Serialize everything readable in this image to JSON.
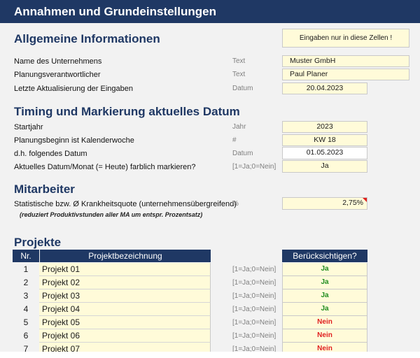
{
  "title": "Annahmen und Grundeinstellungen",
  "hint": "Eingaben nur in diese Zellen !",
  "colors": {
    "header_bg": "#1f3864",
    "input_bg": "#fffbd9",
    "yes": "#1e8c1e",
    "no": "#e02020"
  },
  "general": {
    "heading": "Allgemeine Informationen",
    "rows": [
      {
        "label": "Name des Unternehmens",
        "unit": "Text",
        "value": "Muster GmbH"
      },
      {
        "label": "Planungsverantwortlicher",
        "unit": "Text",
        "value": "Paul Planer"
      },
      {
        "label": "Letzte Aktualisierung der Eingaben",
        "unit": "Datum",
        "value": "20.04.2023"
      }
    ]
  },
  "timing": {
    "heading": "Timing und Markierung aktuelles Datum",
    "rows": [
      {
        "label": "Startjahr",
        "unit": "Jahr",
        "value": "2023"
      },
      {
        "label": "Planungsbeginn ist Kalenderwoche",
        "unit": "#",
        "value": "KW 18"
      },
      {
        "label": "d.h. folgendes Datum",
        "unit": "Datum",
        "value": "01.05.2023"
      },
      {
        "label": "Aktuelles Datum/Monat (= Heute) farblich markieren?",
        "unit": "[1=Ja;0=Nein]",
        "value": "Ja"
      }
    ]
  },
  "staff": {
    "heading": "Mitarbeiter",
    "label": "Statistische bzw. Ø Krankheitsquote (unternehmensübergreifend)",
    "unit": "%",
    "value": "2,75%",
    "note": "(reduziert Produktivstunden aller MA um entspr. Prozentsatz)"
  },
  "projects": {
    "heading": "Projekte",
    "col_nr": "Nr.",
    "col_name": "Projektbezeichnung",
    "col_consider": "Berücksichtigen?",
    "unit": "[1=Ja;0=Nein]",
    "rows": [
      {
        "nr": "1",
        "name": "Projekt 01",
        "consider": "Ja"
      },
      {
        "nr": "2",
        "name": "Projekt 02",
        "consider": "Ja"
      },
      {
        "nr": "3",
        "name": "Projekt 03",
        "consider": "Ja"
      },
      {
        "nr": "4",
        "name": "Projekt 04",
        "consider": "Ja"
      },
      {
        "nr": "5",
        "name": "Projekt 05",
        "consider": "Nein"
      },
      {
        "nr": "6",
        "name": "Projekt 06",
        "consider": "Nein"
      },
      {
        "nr": "7",
        "name": "Projekt 07",
        "consider": "Nein"
      }
    ]
  }
}
